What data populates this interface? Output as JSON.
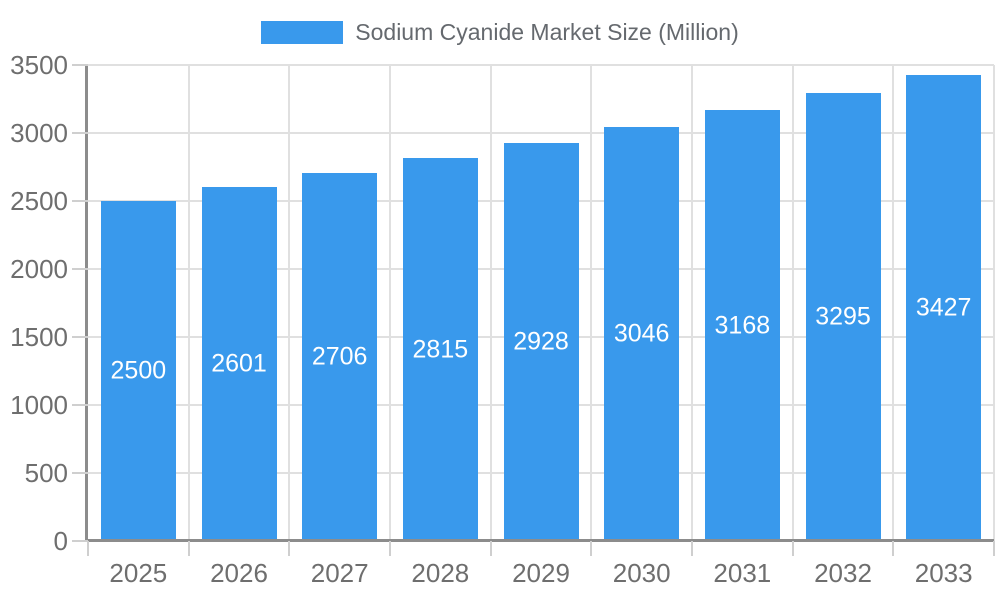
{
  "chart_data": {
    "type": "bar",
    "title": "Sodium Cyanide Market Size (Million)",
    "legend": [
      "Sodium Cyanide Market Size (Million)"
    ],
    "legend_position": "top",
    "categories": [
      "2025",
      "2026",
      "2027",
      "2028",
      "2029",
      "2030",
      "2031",
      "2032",
      "2033"
    ],
    "values": [
      2500,
      2601,
      2706,
      2815,
      2928,
      3046,
      3168,
      3295,
      3427
    ],
    "value_labels_shown": true,
    "xlabel": "",
    "ylabel": "",
    "ylim": [
      0,
      3500
    ],
    "yticks": [
      0,
      500,
      1000,
      1500,
      2000,
      2500,
      3000,
      3500
    ],
    "grid": true,
    "bar_color": "#3999EC",
    "value_label_color": "#ffffff",
    "axis_label_color": "#6e6e6e",
    "legend_text_color": "#65696e",
    "gridline_color": "#e0e0e0",
    "axis_line_color": "#8c8c8c",
    "tick_color": "#cfcfcf"
  }
}
